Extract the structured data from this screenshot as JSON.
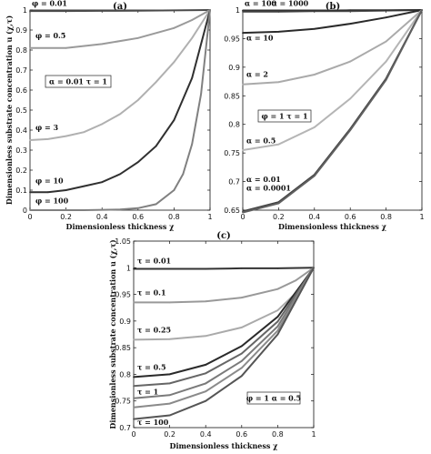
{
  "chart_data": [
    {
      "type": "line",
      "title": "(a)",
      "xlabel": "Dimensionless thickness χ",
      "ylabel": "Dimensionless substrate concentration  u (χ,τ)",
      "xlim": [
        0,
        1
      ],
      "ylim": [
        0,
        1
      ],
      "xticks": [
        "0",
        "0.2",
        "0.4",
        "0.6",
        "0.8",
        "1"
      ],
      "yticks": [
        "0",
        "0.1",
        "0.2",
        "0.3",
        "0.4",
        "0.5",
        "0.6",
        "0.7",
        "0.8",
        "0.9",
        "1"
      ],
      "legend_box": "α = 0.01  τ = 1",
      "legend_placement": "center-left",
      "series": [
        {
          "name": "φ = 0.01",
          "color": "#4a4a4a",
          "x": [
            0,
            0.2,
            0.4,
            0.6,
            0.8,
            1
          ],
          "y": [
            0.995,
            0.995,
            0.996,
            0.997,
            0.998,
            1
          ]
        },
        {
          "name": "φ = 0.5",
          "color": "#9a9a9a",
          "x": [
            0,
            0.2,
            0.4,
            0.6,
            0.8,
            0.9,
            1
          ],
          "y": [
            0.81,
            0.81,
            0.83,
            0.86,
            0.91,
            0.95,
            1
          ]
        },
        {
          "name": "φ = 3",
          "color": "#b0b0b0",
          "x": [
            0,
            0.1,
            0.2,
            0.3,
            0.4,
            0.5,
            0.6,
            0.7,
            0.8,
            0.9,
            1
          ],
          "y": [
            0.35,
            0.355,
            0.37,
            0.39,
            0.43,
            0.48,
            0.55,
            0.64,
            0.74,
            0.86,
            1
          ]
        },
        {
          "name": "φ = 10",
          "color": "#303030",
          "x": [
            0,
            0.1,
            0.2,
            0.3,
            0.4,
            0.5,
            0.6,
            0.7,
            0.8,
            0.9,
            1
          ],
          "y": [
            0.09,
            0.09,
            0.1,
            0.12,
            0.14,
            0.18,
            0.24,
            0.32,
            0.45,
            0.66,
            1
          ]
        },
        {
          "name": "φ = 100",
          "color": "#808080",
          "x": [
            0,
            0.3,
            0.5,
            0.6,
            0.7,
            0.8,
            0.85,
            0.9,
            0.95,
            1
          ],
          "y": [
            0.0,
            0.0,
            0.003,
            0.01,
            0.03,
            0.1,
            0.18,
            0.33,
            0.58,
            1
          ]
        }
      ],
      "annotations": [
        {
          "text": "φ = 0.01",
          "x": 0.01,
          "y": 1.02
        },
        {
          "text": "φ = 0.5",
          "x": 0.03,
          "y": 0.86
        },
        {
          "text": "φ = 3",
          "x": 0.03,
          "y": 0.4
        },
        {
          "text": "φ = 10",
          "x": 0.03,
          "y": 0.135
        },
        {
          "text": "φ = 100",
          "x": 0.03,
          "y": 0.035
        }
      ]
    },
    {
      "type": "line",
      "title": "(b)",
      "xlabel": "Dimensionless thickness χ",
      "ylabel": "",
      "xlim": [
        0,
        1
      ],
      "ylim": [
        0.65,
        1
      ],
      "xticks": [
        "0",
        "0.2",
        "0.4",
        "0.6",
        "0.8",
        "1"
      ],
      "yticks": [
        "0.65",
        "0.7",
        "0.75",
        "0.8",
        "0.85",
        "0.9",
        "0.95",
        "1"
      ],
      "legend_box": "φ = 1  τ = 1",
      "legend_placement": "center-left",
      "series": [
        {
          "name": "α = 100",
          "color": "#555555",
          "x": [
            0,
            0.2,
            0.4,
            0.6,
            0.8,
            1
          ],
          "y": [
            0.997,
            0.997,
            0.998,
            0.998,
            0.999,
            1
          ]
        },
        {
          "name": "α = 1000",
          "color": "#333333",
          "x": [
            0,
            0.2,
            0.4,
            0.6,
            0.8,
            1
          ],
          "y": [
            0.999,
            0.999,
            0.999,
            0.9995,
            0.9995,
            1
          ]
        },
        {
          "name": "α = 10",
          "color": "#2a2a2a",
          "x": [
            0,
            0.2,
            0.4,
            0.6,
            0.8,
            1
          ],
          "y": [
            0.96,
            0.962,
            0.967,
            0.976,
            0.987,
            1
          ]
        },
        {
          "name": "α = 2",
          "color": "#aaaaaa",
          "x": [
            0,
            0.2,
            0.4,
            0.6,
            0.8,
            1
          ],
          "y": [
            0.87,
            0.874,
            0.887,
            0.91,
            0.945,
            1
          ]
        },
        {
          "name": "α = 0.5",
          "color": "#b5b5b5",
          "x": [
            0,
            0.2,
            0.4,
            0.6,
            0.8,
            1
          ],
          "y": [
            0.755,
            0.765,
            0.795,
            0.845,
            0.91,
            1
          ]
        },
        {
          "name": "α = 0.01",
          "color": "#404040",
          "x": [
            0,
            0.2,
            0.4,
            0.6,
            0.8,
            1
          ],
          "y": [
            0.648,
            0.664,
            0.712,
            0.792,
            0.88,
            1
          ]
        },
        {
          "name": "α = 0.0001",
          "color": "#606060",
          "x": [
            0,
            0.2,
            0.4,
            0.6,
            0.8,
            1
          ],
          "y": [
            0.646,
            0.662,
            0.71,
            0.79,
            0.878,
            1
          ]
        }
      ],
      "annotations": [
        {
          "text": "α = 100",
          "x": 0.01,
          "y": 1.007
        },
        {
          "text": "α = 1000",
          "x": 0.16,
          "y": 1.007
        },
        {
          "text": "α = 10",
          "x": 0.02,
          "y": 0.947
        },
        {
          "text": "α = 2",
          "x": 0.02,
          "y": 0.883
        },
        {
          "text": "α = 0.5",
          "x": 0.02,
          "y": 0.767
        },
        {
          "text": "α = 0.01",
          "x": 0.02,
          "y": 0.699
        },
        {
          "text": "α = 0.0001",
          "x": 0.02,
          "y": 0.684
        }
      ]
    },
    {
      "type": "line",
      "title": "(c)",
      "xlabel": "Dimensionless thickness χ",
      "ylabel": "Dimensionless substrate concentration  u (χ,τ)",
      "xlim": [
        0,
        1
      ],
      "ylim": [
        0.7,
        1.05
      ],
      "xticks": [
        "0",
        "0.2",
        "0.4",
        "0.6",
        "0.8",
        "1"
      ],
      "yticks": [
        "0.7",
        "0.75",
        "0.8",
        "0.85",
        "0.9",
        "0.95",
        "1",
        "1.05"
      ],
      "legend_box": "φ = 1  α = 0.5",
      "legend_placement": "bottom-right",
      "series": [
        {
          "name": "τ = 0.01",
          "color": "#333333",
          "x": [
            0,
            0.2,
            0.4,
            0.6,
            0.8,
            1
          ],
          "y": [
            0.998,
            0.998,
            0.998,
            0.999,
            0.999,
            1
          ]
        },
        {
          "name": "τ = 0.1",
          "color": "#999999",
          "x": [
            0,
            0.2,
            0.4,
            0.6,
            0.8,
            0.9,
            1
          ],
          "y": [
            0.935,
            0.935,
            0.937,
            0.944,
            0.96,
            0.976,
            1
          ]
        },
        {
          "name": "τ = 0.25",
          "color": "#aaaaaa",
          "x": [
            0,
            0.2,
            0.4,
            0.6,
            0.8,
            0.9,
            1
          ],
          "y": [
            0.865,
            0.866,
            0.872,
            0.888,
            0.92,
            0.952,
            1
          ]
        },
        {
          "name": "τ = 0.5",
          "color": "#2a2a2a",
          "x": [
            0,
            0.2,
            0.4,
            0.6,
            0.8,
            1
          ],
          "y": [
            0.795,
            0.8,
            0.818,
            0.853,
            0.908,
            1
          ]
        },
        {
          "name": "",
          "color": "#666666",
          "x": [
            0,
            0.2,
            0.4,
            0.6,
            0.8,
            1
          ],
          "y": [
            0.778,
            0.783,
            0.802,
            0.839,
            0.899,
            1
          ]
        },
        {
          "name": "τ = 1",
          "color": "#7a7a7a",
          "x": [
            0,
            0.2,
            0.4,
            0.6,
            0.8,
            1
          ],
          "y": [
            0.755,
            0.761,
            0.783,
            0.825,
            0.89,
            1
          ]
        },
        {
          "name": "",
          "color": "#8a8a8a",
          "x": [
            0,
            0.2,
            0.4,
            0.6,
            0.8,
            1
          ],
          "y": [
            0.738,
            0.745,
            0.768,
            0.812,
            0.882,
            1
          ]
        },
        {
          "name": "τ = 100",
          "color": "#555555",
          "x": [
            0,
            0.2,
            0.4,
            0.6,
            0.8,
            1
          ],
          "y": [
            0.716,
            0.723,
            0.75,
            0.797,
            0.875,
            1
          ]
        }
      ],
      "annotations": [
        {
          "text": "τ = 0.01",
          "x": 0.02,
          "y": 1.008
        },
        {
          "text": "τ = 0.1",
          "x": 0.02,
          "y": 0.948
        },
        {
          "text": "τ = 0.25",
          "x": 0.02,
          "y": 0.878
        },
        {
          "text": "τ = 0.5",
          "x": 0.02,
          "y": 0.808
        },
        {
          "text": "τ = 1",
          "x": 0.02,
          "y": 0.762
        },
        {
          "text": "τ = 100",
          "x": 0.02,
          "y": 0.705
        }
      ]
    }
  ]
}
